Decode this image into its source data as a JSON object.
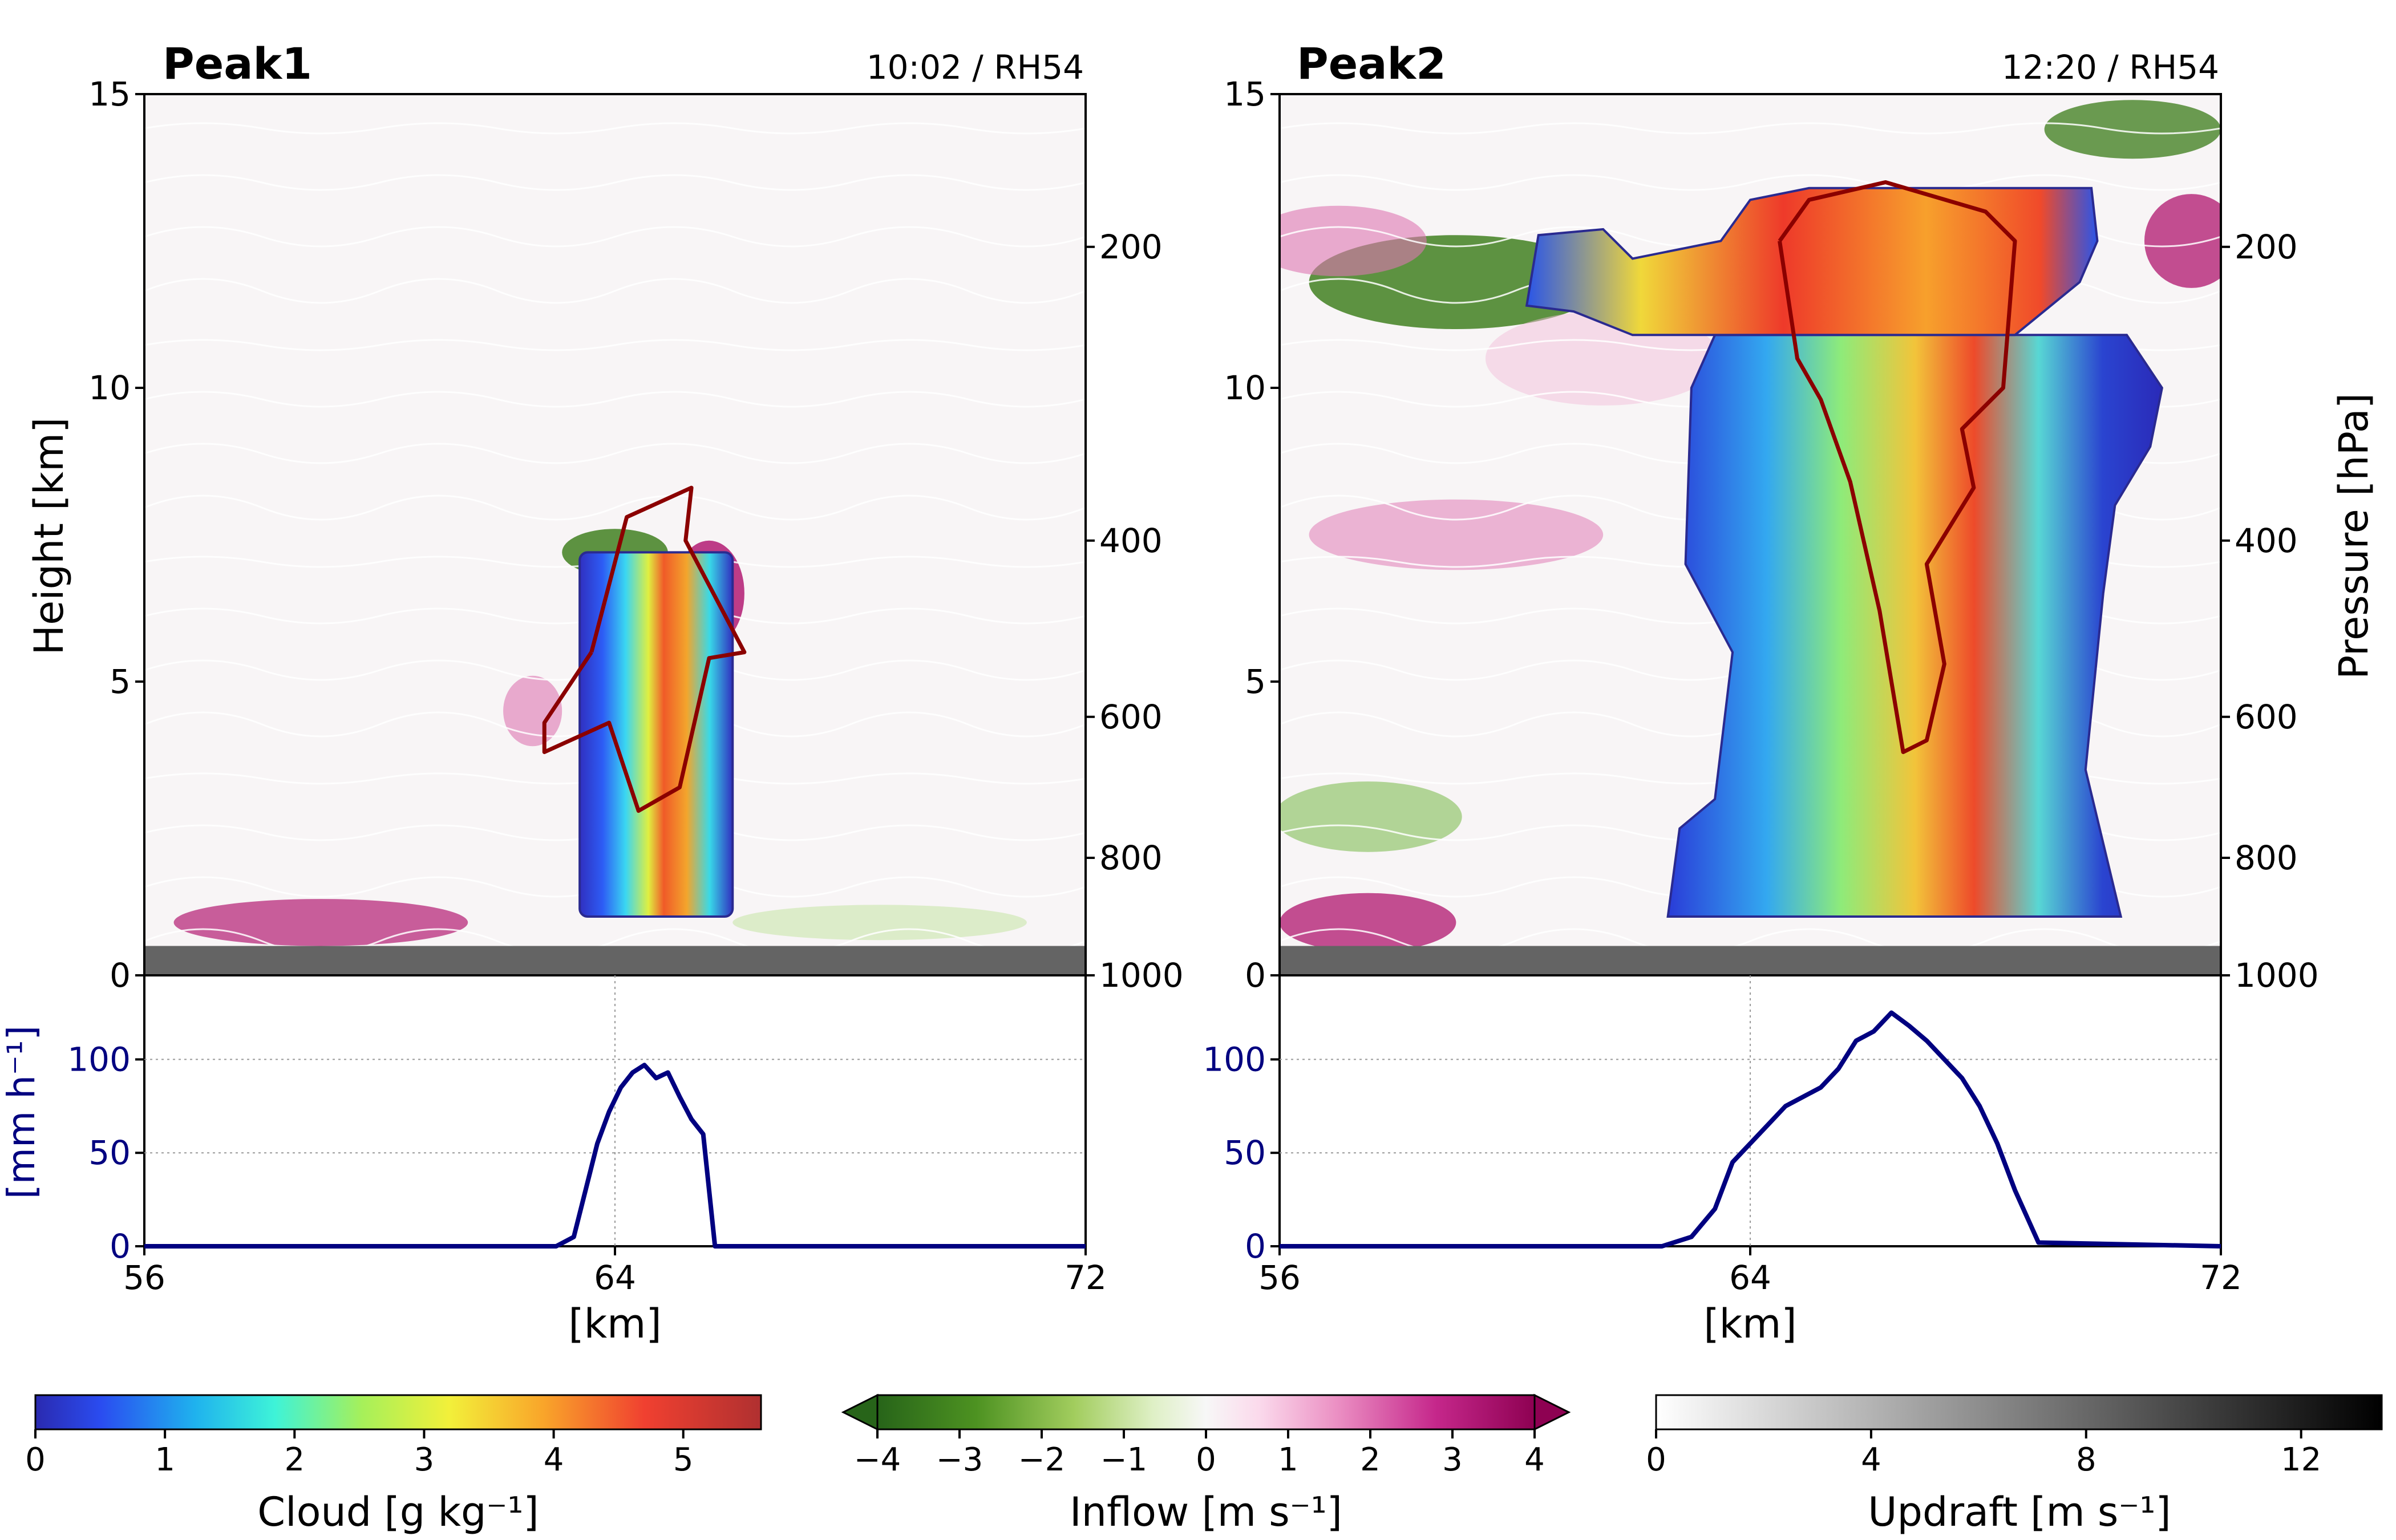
{
  "chart_data": [
    {
      "type": "heatmap",
      "panel": "left",
      "title": "Peak1",
      "stamp": "10:02 / RH54",
      "xlim": [
        56,
        72
      ],
      "ylim": [
        0,
        15
      ],
      "ylabel": "Height [km]",
      "y_ticks": [
        0,
        5,
        10,
        15
      ],
      "pressure_ticks": [
        {
          "label": "200",
          "height": 12.4
        },
        {
          "label": "400",
          "height": 7.4
        },
        {
          "label": "600",
          "height": 4.4
        },
        {
          "label": "800",
          "height": 2.0
        },
        {
          "label": "1000",
          "height": 0.0
        }
      ],
      "pressure_label": "",
      "terrain_height": 0.5,
      "cloud_region": {
        "x0": 63.4,
        "x1": 66.0,
        "top": 7.2,
        "base": 1.0
      },
      "updraft_contour": [
        [
          63.6,
          5.5
        ],
        [
          64.2,
          7.8
        ],
        [
          65.3,
          8.3
        ],
        [
          65.2,
          7.4
        ],
        [
          66.2,
          5.5
        ],
        [
          65.6,
          5.4
        ],
        [
          65.1,
          3.2
        ],
        [
          64.4,
          2.8
        ],
        [
          63.9,
          4.3
        ],
        [
          62.8,
          3.8
        ],
        [
          62.8,
          4.3
        ],
        [
          63.6,
          5.5
        ]
      ],
      "inflow_blobs": [
        {
          "x": 64.0,
          "y": 7.2,
          "rx": 0.9,
          "ry": 0.4,
          "value": -3.5
        },
        {
          "x": 65.6,
          "y": 6.5,
          "rx": 0.6,
          "ry": 0.9,
          "value": 3.5
        },
        {
          "x": 59.0,
          "y": 0.9,
          "rx": 2.5,
          "ry": 0.4,
          "value": 2.5
        },
        {
          "x": 62.6,
          "y": 4.5,
          "rx": 0.5,
          "ry": 0.6,
          "value": 2.0
        },
        {
          "x": 68.5,
          "y": 0.9,
          "rx": 2.5,
          "ry": 0.3,
          "value": -1.0
        }
      ],
      "precip_panel": {
        "ylabel": "[mm h⁻¹]",
        "ylim": [
          0,
          145
        ],
        "y_ticks": [
          0,
          50,
          100
        ],
        "xlabel": "[km]",
        "x_ticks": [
          56,
          64,
          72
        ],
        "x": [
          56,
          63.0,
          63.3,
          63.5,
          63.7,
          63.9,
          64.1,
          64.3,
          64.5,
          64.7,
          64.9,
          65.1,
          65.3,
          65.5,
          65.7,
          72
        ],
        "values": [
          0,
          0,
          5,
          30,
          55,
          72,
          85,
          93,
          97,
          90,
          93,
          80,
          68,
          60,
          0,
          0
        ]
      }
    },
    {
      "type": "heatmap",
      "panel": "right",
      "title": "Peak2",
      "stamp": "12:20 / RH54",
      "xlim": [
        56,
        72
      ],
      "ylim": [
        0,
        15
      ],
      "ylabel": "",
      "y_ticks": [
        0,
        5,
        10,
        15
      ],
      "pressure_ticks": [
        {
          "label": "200",
          "height": 12.4
        },
        {
          "label": "400",
          "height": 7.4
        },
        {
          "label": "600",
          "height": 4.4
        },
        {
          "label": "800",
          "height": 2.0
        },
        {
          "label": "1000",
          "height": 0.0
        }
      ],
      "pressure_label": "Pressure [hPa]",
      "terrain_height": 0.5,
      "cloud_region": {
        "x0": 62.5,
        "x1": 71.0,
        "top": 13.5,
        "base": 1.0
      },
      "updraft_contour": [
        [
          64.5,
          12.5
        ],
        [
          65.0,
          13.2
        ],
        [
          66.3,
          13.5
        ],
        [
          68.0,
          13.0
        ],
        [
          68.5,
          12.5
        ],
        [
          68.3,
          10.0
        ],
        [
          67.6,
          9.3
        ],
        [
          67.8,
          8.3
        ],
        [
          67.0,
          7.0
        ],
        [
          67.3,
          5.3
        ],
        [
          67.0,
          4.0
        ],
        [
          66.6,
          3.8
        ],
        [
          66.2,
          6.2
        ],
        [
          65.7,
          8.4
        ],
        [
          65.2,
          9.8
        ],
        [
          64.8,
          10.5
        ],
        [
          64.5,
          12.5
        ]
      ],
      "inflow_blobs": [
        {
          "x": 59.0,
          "y": 11.8,
          "rx": 2.5,
          "ry": 0.8,
          "value": -3.5
        },
        {
          "x": 57.0,
          "y": 12.5,
          "rx": 1.5,
          "ry": 0.6,
          "value": 2.0
        },
        {
          "x": 70.5,
          "y": 14.4,
          "rx": 1.5,
          "ry": 0.5,
          "value": -3.0
        },
        {
          "x": 71.5,
          "y": 12.5,
          "rx": 0.8,
          "ry": 0.8,
          "value": 3.0
        },
        {
          "x": 57.5,
          "y": 0.9,
          "rx": 1.5,
          "ry": 0.5,
          "value": 3.0
        },
        {
          "x": 57.5,
          "y": 2.7,
          "rx": 1.6,
          "ry": 0.6,
          "value": -1.5
        },
        {
          "x": 59.0,
          "y": 7.5,
          "rx": 2.5,
          "ry": 0.6,
          "value": 1.5
        },
        {
          "x": 61.5,
          "y": 10.5,
          "rx": 2.0,
          "ry": 0.8,
          "value": 1.2
        }
      ],
      "precip_panel": {
        "ylabel": "",
        "ylim": [
          0,
          145
        ],
        "y_ticks": [
          0,
          50,
          100
        ],
        "xlabel": "[km]",
        "x_ticks": [
          56,
          64,
          72
        ],
        "x": [
          56,
          62.5,
          63.0,
          63.4,
          63.7,
          64.0,
          64.3,
          64.6,
          64.9,
          65.2,
          65.5,
          65.8,
          66.1,
          66.4,
          66.7,
          67.0,
          67.3,
          67.6,
          67.9,
          68.2,
          68.5,
          68.9,
          72
        ],
        "values": [
          0,
          0,
          5,
          20,
          45,
          55,
          65,
          75,
          80,
          85,
          95,
          110,
          115,
          125,
          118,
          110,
          100,
          90,
          75,
          55,
          30,
          2,
          0
        ]
      }
    }
  ],
  "colorbars": [
    {
      "label": "Cloud [g kg⁻¹]",
      "ticks": [
        "0",
        "1",
        "2",
        "3",
        "4",
        "5"
      ],
      "range": [
        0,
        5.6
      ],
      "colormap": "jet"
    },
    {
      "label": "Inflow [m s⁻¹]",
      "ticks": [
        "−4",
        "−3",
        "−2",
        "−1",
        "0",
        "1",
        "2",
        "3",
        "4"
      ],
      "range": [
        -4,
        4
      ],
      "colormap": "PiYG"
    },
    {
      "label": "Updraft [m s⁻¹]",
      "ticks": [
        "0",
        "4",
        "8",
        "12"
      ],
      "range": [
        0,
        13.5
      ],
      "colormap": "Greys"
    }
  ],
  "colors": {
    "contour": "#8b0000",
    "precip_line": "#000080",
    "terrain": "#646464"
  }
}
